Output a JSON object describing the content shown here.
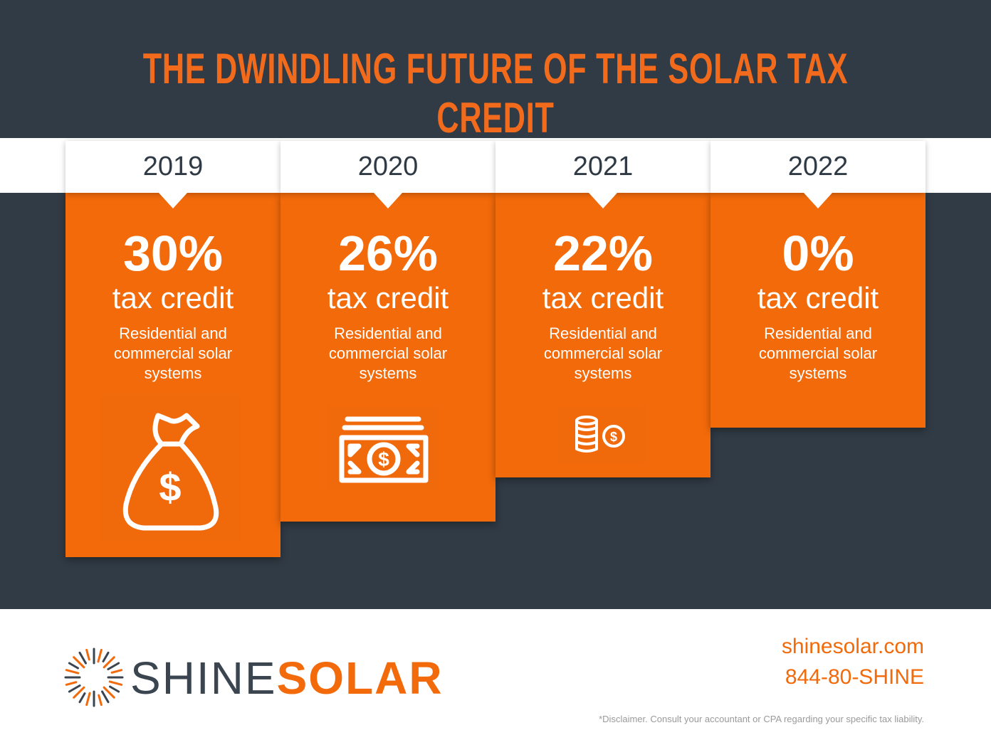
{
  "header": {
    "title": "THE DWINDLING FUTURE OF THE SOLAR TAX CREDIT"
  },
  "columns": [
    {
      "year": "2019",
      "percent": "30%",
      "label": "tax credit",
      "description": "Residential and commercial solar systems"
    },
    {
      "year": "2020",
      "percent": "26%",
      "label": "tax credit",
      "description": "Residential and commercial solar systems"
    },
    {
      "year": "2021",
      "percent": "22%",
      "label": "tax credit",
      "description": "Residential and commercial solar systems"
    },
    {
      "year": "2022",
      "percent": "0%",
      "label": "tax credit",
      "description": "Residential and commercial solar systems"
    }
  ],
  "footer": {
    "brand_first": "SHINE",
    "brand_second": "SOLAR",
    "website": "shinesolar.com",
    "phone": "844-80-SHINE",
    "disclaimer": "*Disclaimer. Consult your accountant or CPA regarding your specific tax liability."
  }
}
